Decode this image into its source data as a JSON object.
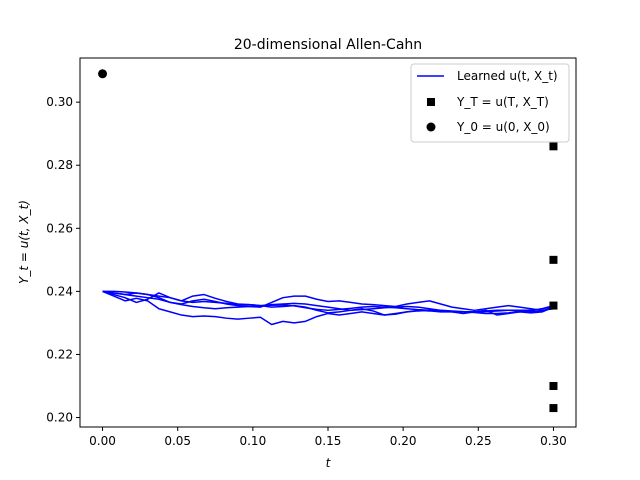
{
  "chart_data": {
    "type": "line",
    "title": "20-dimensional Allen-Cahn",
    "xlabel": "t",
    "ylabel": "Y_t = u(t, X_t)",
    "xlim": [
      -0.015,
      0.315
    ],
    "ylim": [
      0.197,
      0.314
    ],
    "x_ticks": [
      0.0,
      0.05,
      0.1,
      0.15,
      0.2,
      0.25,
      0.3
    ],
    "x_tick_labels": [
      "0.00",
      "0.05",
      "0.10",
      "0.15",
      "0.20",
      "0.25",
      "0.30"
    ],
    "y_ticks": [
      0.2,
      0.22,
      0.24,
      0.26,
      0.28,
      0.3
    ],
    "y_tick_labels": [
      "0.20",
      "0.22",
      "0.24",
      "0.26",
      "0.28",
      "0.30"
    ],
    "grid": false,
    "legend_position": "top-right",
    "legend": [
      {
        "label": "Learned u(t, X_t)",
        "marker": "line",
        "color": "#0000ff"
      },
      {
        "label": "Y_T = u(T, X_T)",
        "marker": "square",
        "color": "#000000"
      },
      {
        "label": "Y_0 = u(0, X_0)",
        "marker": "circle",
        "color": "#000000"
      }
    ],
    "x": [
      0.0,
      0.0075,
      0.015,
      0.0225,
      0.03,
      0.0375,
      0.045,
      0.0525,
      0.06,
      0.0675,
      0.075,
      0.0825,
      0.09,
      0.0975,
      0.105,
      0.1125,
      0.12,
      0.1275,
      0.135,
      0.1425,
      0.15,
      0.1575,
      0.165,
      0.1725,
      0.18,
      0.1875,
      0.195,
      0.2025,
      0.21,
      0.2175,
      0.225,
      0.2325,
      0.24,
      0.2475,
      0.255,
      0.2625,
      0.27,
      0.2775,
      0.285,
      0.2925,
      0.3
    ],
    "series": [
      {
        "values": [
          0.24,
          0.2395,
          0.239,
          0.2385,
          0.238,
          0.2375,
          0.2365,
          0.2358,
          0.2352,
          0.2348,
          0.2345,
          0.2348,
          0.235,
          0.2352,
          0.2354,
          0.2356,
          0.2357,
          0.2354,
          0.2348,
          0.2343,
          0.234,
          0.2343,
          0.2346,
          0.235,
          0.2352,
          0.235,
          0.2348,
          0.2345,
          0.2342,
          0.234,
          0.2338,
          0.2336,
          0.2335,
          0.2335,
          0.2336,
          0.2338,
          0.234,
          0.234,
          0.234,
          0.2345,
          0.2352
        ]
      },
      {
        "values": [
          0.24,
          0.2395,
          0.239,
          0.2395,
          0.239,
          0.2385,
          0.238,
          0.237,
          0.2365,
          0.2368,
          0.2365,
          0.2362,
          0.2358,
          0.2358,
          0.2355,
          0.2358,
          0.236,
          0.2362,
          0.236,
          0.2355,
          0.235,
          0.2345,
          0.234,
          0.2342,
          0.2345,
          0.2348,
          0.235,
          0.2352,
          0.235,
          0.2345,
          0.234,
          0.2338,
          0.2336,
          0.2335,
          0.2338,
          0.234,
          0.234,
          0.2338,
          0.2335,
          0.2338,
          0.235
        ]
      },
      {
        "values": [
          0.24,
          0.24,
          0.2398,
          0.2395,
          0.239,
          0.238,
          0.2365,
          0.236,
          0.237,
          0.2375,
          0.2368,
          0.236,
          0.2355,
          0.2352,
          0.235,
          0.2365,
          0.238,
          0.2385,
          0.2385,
          0.2375,
          0.2368,
          0.237,
          0.2365,
          0.236,
          0.2358,
          0.2355,
          0.2352,
          0.236,
          0.2365,
          0.237,
          0.236,
          0.235,
          0.2345,
          0.234,
          0.2345,
          0.235,
          0.2355,
          0.235,
          0.2345,
          0.234,
          0.2345
        ]
      },
      {
        "values": [
          0.24,
          0.239,
          0.238,
          0.2365,
          0.2375,
          0.2395,
          0.238,
          0.237,
          0.2385,
          0.239,
          0.2378,
          0.2368,
          0.236,
          0.2358,
          0.2355,
          0.235,
          0.2352,
          0.2355,
          0.235,
          0.234,
          0.2332,
          0.2335,
          0.234,
          0.2345,
          0.2338,
          0.2325,
          0.2328,
          0.2335,
          0.234,
          0.2338,
          0.2335,
          0.2335,
          0.2335,
          0.2333,
          0.233,
          0.233,
          0.2332,
          0.2335,
          0.2338,
          0.2345,
          0.2355
        ]
      },
      {
        "values": [
          0.24,
          0.2385,
          0.237,
          0.2378,
          0.237,
          0.2345,
          0.2335,
          0.2325,
          0.232,
          0.2322,
          0.232,
          0.2315,
          0.2312,
          0.2315,
          0.2318,
          0.2295,
          0.2305,
          0.23,
          0.2305,
          0.232,
          0.233,
          0.2325,
          0.233,
          0.2335,
          0.233,
          0.2325,
          0.233,
          0.2335,
          0.2338,
          0.234,
          0.2338,
          0.2335,
          0.233,
          0.2335,
          0.234,
          0.2325,
          0.233,
          0.2335,
          0.2332,
          0.2335,
          0.235
        ]
      }
    ],
    "terminal_points": {
      "x": 0.3,
      "y": [
        0.286,
        0.25,
        0.2355,
        0.21,
        0.203
      ]
    },
    "initial_point": {
      "x": 0.0,
      "y": 0.309
    },
    "colors": {
      "line": "#0000ff",
      "marker": "#000000"
    }
  }
}
